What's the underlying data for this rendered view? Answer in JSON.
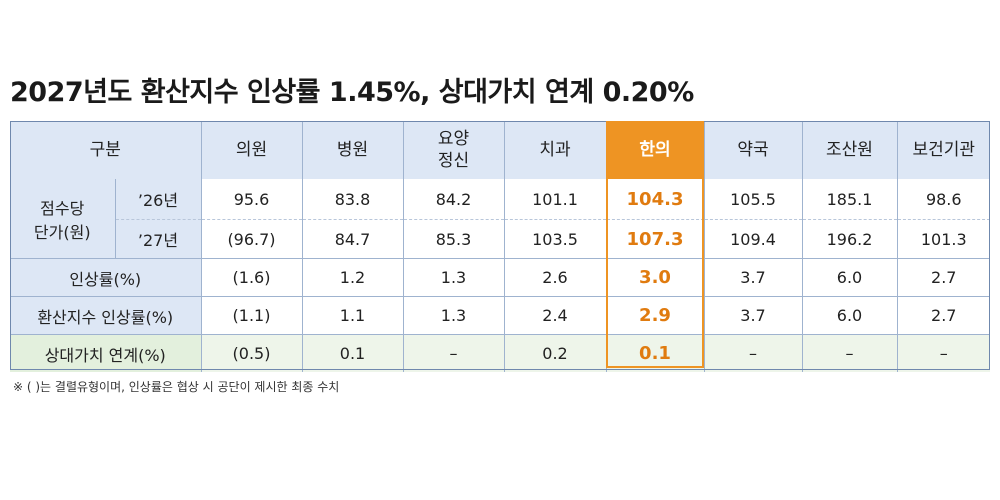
{
  "title": "2027년도 환산지수 인상률 1.45%, 상대가치 연계 0.20%",
  "table": {
    "corner": "구분",
    "columns": [
      "의원",
      "병원",
      "요양\n정신",
      "치과",
      "한의",
      "약국",
      "조산원",
      "보건기관"
    ],
    "highlight_column": "한의",
    "unit_price_label": "점수당\n단가(원)",
    "rows": [
      {
        "label": "’26년",
        "values": [
          "95.6",
          "83.8",
          "84.2",
          "101.1",
          "104.3",
          "105.5",
          "185.1",
          "98.6"
        ]
      },
      {
        "label": "’27년",
        "values": [
          "(96.7)",
          "84.7",
          "85.3",
          "103.5",
          "107.3",
          "109.4",
          "196.2",
          "101.3"
        ]
      },
      {
        "label": "인상률(%)",
        "values": [
          "(1.6)",
          "1.2",
          "1.3",
          "2.6",
          "3.0",
          "3.7",
          "6.0",
          "2.7"
        ]
      },
      {
        "label": "환산지수 인상률(%)",
        "values": [
          "(1.1)",
          "1.1",
          "1.3",
          "2.4",
          "2.9",
          "3.7",
          "6.0",
          "2.7"
        ]
      },
      {
        "label": "상대가치 연계(%)",
        "values": [
          "(0.5)",
          "0.1",
          "–",
          "0.2",
          "0.1",
          "–",
          "–",
          "–"
        ]
      }
    ]
  },
  "note": "※ ( )는 결렬유형이며, 인상률은 협상 시 공단이 제시한 최종 수치",
  "colors": {
    "header_bg": "#dde7f5",
    "highlight": "#ee9423",
    "highlight_text": "#e07b0f",
    "green_row": "#eef5ea"
  }
}
